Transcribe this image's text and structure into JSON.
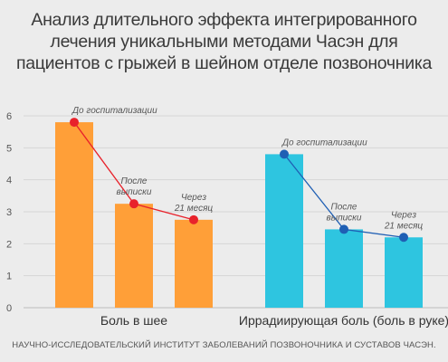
{
  "chart_data": {
    "type": "bar",
    "title_lines": [
      "Анализ длительного эффекта интегрированного",
      "лечения уникальными методами Часэн для",
      "пациентов с грыжей в шейном отделе позвоночника"
    ],
    "footer": "НАУЧНО-ИССЛЕДОВАТЕЛЬСКИЙ ИНСТИТУТ ЗАБОЛЕВАНИЙ ПОЗВОНОЧНИКА И СУСТАВОВ ЧАСЭН.",
    "ylim": [
      0,
      6
    ],
    "yticks": [
      "0",
      "1",
      "2",
      "3",
      "4",
      "5",
      "6"
    ],
    "grid": true,
    "groups": [
      {
        "name": "Боль в шее",
        "color": "#ff9f38",
        "line_color": "#e8222b",
        "values": [
          5.8,
          3.25,
          2.75
        ],
        "labels": [
          [
            "До госпитализации"
          ],
          [
            "После",
            "выписки"
          ],
          [
            "Через",
            "21 месяц"
          ]
        ]
      },
      {
        "name": "Иррадиирующая боль (боль в руке)",
        "color": "#2ec5e0",
        "line_color": "#1f5fb4",
        "values": [
          4.8,
          2.45,
          2.2
        ],
        "labels": [
          [
            "До госпитализации"
          ],
          [
            "После",
            "выписки"
          ],
          [
            "Через",
            "21 месяц"
          ]
        ]
      }
    ]
  }
}
